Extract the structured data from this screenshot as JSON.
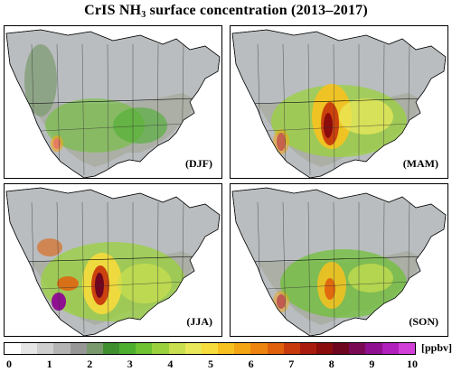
{
  "figure": {
    "title_main": "CrIS NH",
    "title_sub": "3",
    "title_rest": " surface concentration (2013–2017)"
  },
  "panels": [
    {
      "season": "(DJF)",
      "level": "low"
    },
    {
      "season": "(MAM)",
      "level": "high"
    },
    {
      "season": "(JJA)",
      "level": "peak"
    },
    {
      "season": "(SON)",
      "level": "medium"
    }
  ],
  "colorbar": {
    "unit": "[ppbv]",
    "range": [
      0,
      10
    ],
    "ticks": [
      "0",
      "1",
      "2",
      "3",
      "4",
      "5",
      "6",
      "7",
      "8",
      "9",
      "10"
    ],
    "colors": [
      "#ffffff",
      "#e6e6e6",
      "#cfcfcf",
      "#b4b4b4",
      "#979797",
      "#7a9a6e",
      "#3f8f2f",
      "#4caf2e",
      "#6cc230",
      "#9bd13d",
      "#c9df4f",
      "#e9e85a",
      "#f6dc3c",
      "#f7c21f",
      "#f4a514",
      "#ee8410",
      "#e0600c",
      "#c83a0c",
      "#a91b0c",
      "#8a0c0c",
      "#6e0620",
      "#7b0a55",
      "#8f1090",
      "#b11fbc",
      "#d23fd8"
    ]
  }
}
